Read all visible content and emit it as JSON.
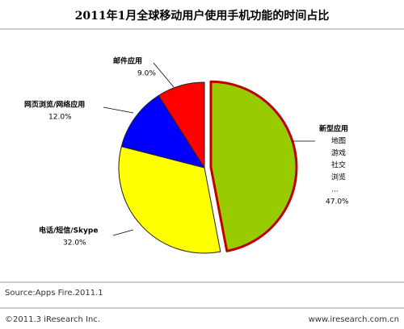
{
  "chart_data": {
    "type": "pie",
    "title": "2011年1月全球移动用户使用手机功能的时间占比",
    "categories": [
      "新型应用",
      "电话/短信/Skype",
      "网页浏览/网络应用",
      "邮件应用"
    ],
    "values": [
      47.0,
      32.0,
      12.0,
      9.0
    ],
    "value_labels": [
      "47.0%",
      "32.0%",
      "12.0%",
      "9.0%"
    ],
    "colors": [
      "#99cc00",
      "#ffff00",
      "#0000ff",
      "#ff0000"
    ],
    "details": [
      "地图",
      "游戏",
      "社交",
      "浏览",
      "..."
    ],
    "exploded": 0,
    "source": "Source:Apps Fire.2011.1"
  },
  "footer": {
    "copyright": "©2011.3 iResearch Inc.",
    "website": "www.iresearch.com.cn"
  }
}
